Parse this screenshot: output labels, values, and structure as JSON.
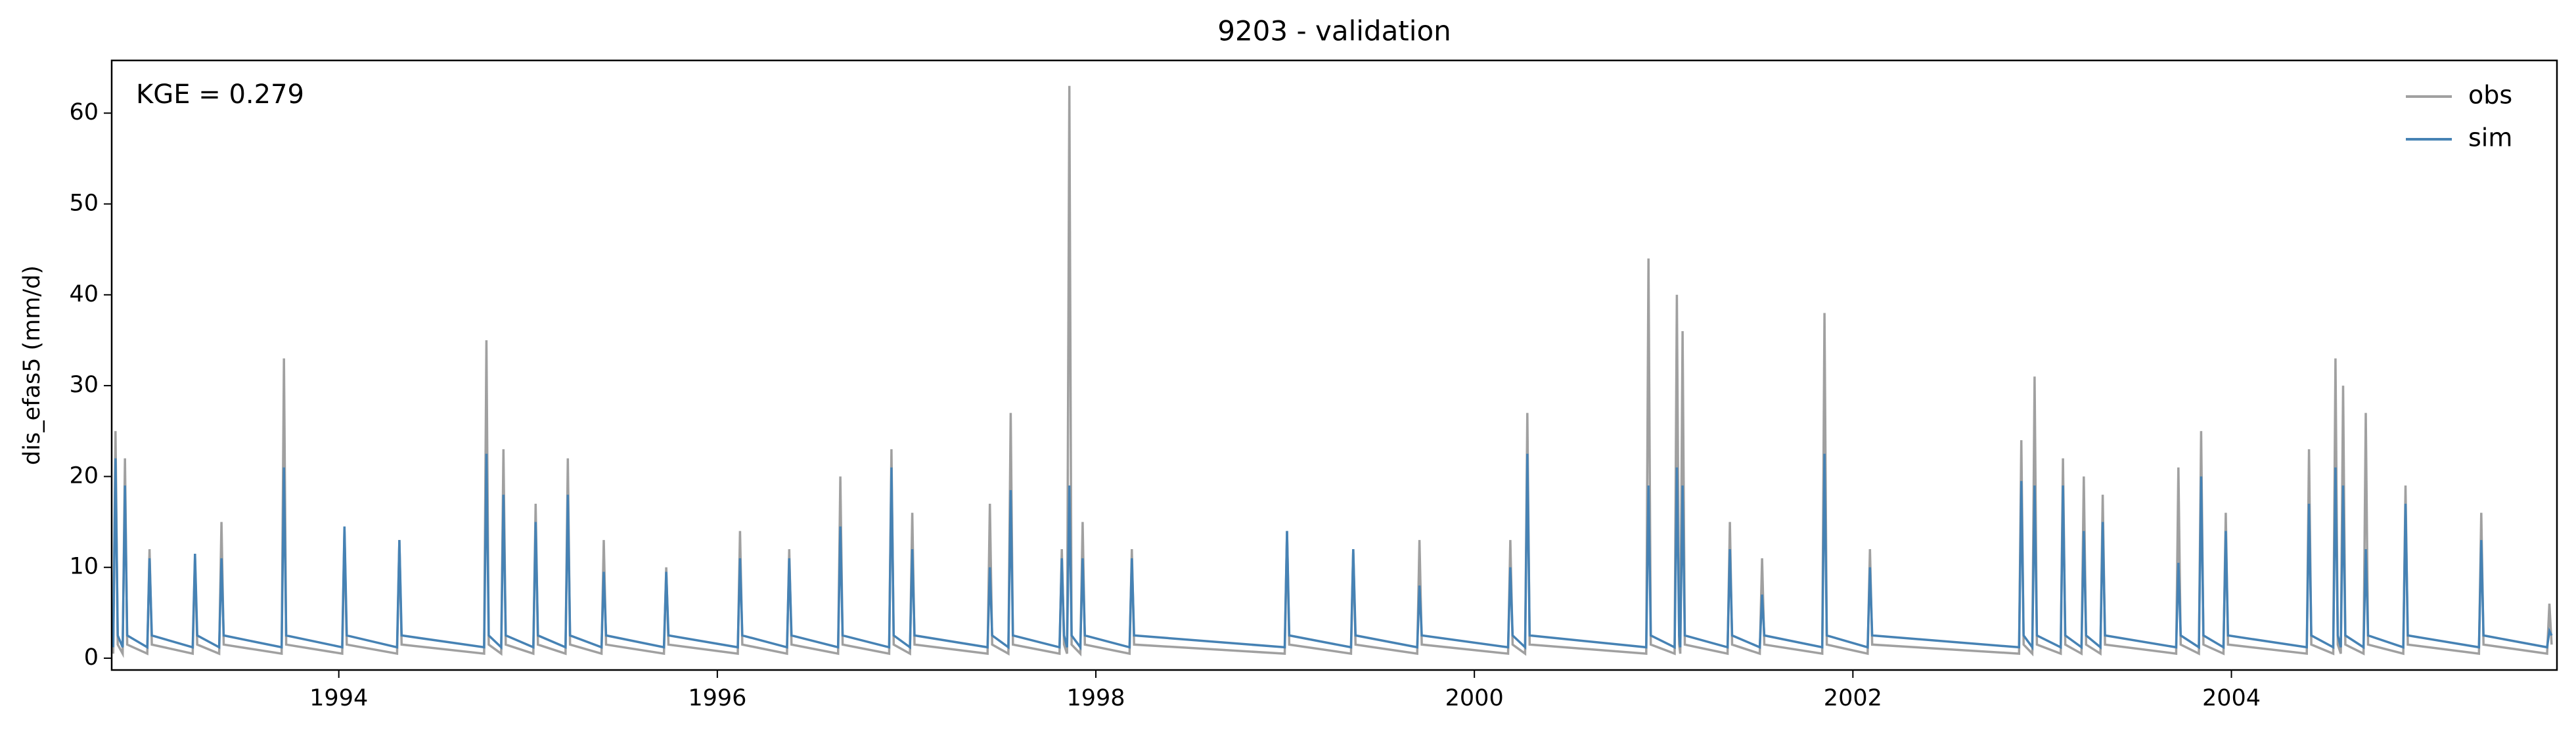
{
  "chart_data": {
    "type": "line",
    "title": "9203 - validation",
    "ylabel": "dis_efas5 (mm/d)",
    "annotation": "KGE = 0.279",
    "legend": "upper right",
    "xlim": [
      1992.8,
      2005.72
    ],
    "xticks": [
      1994,
      1996,
      1998,
      2000,
      2002,
      2004
    ],
    "ylim": [
      -1.3,
      65.8
    ],
    "yticks": [
      0,
      10,
      20,
      30,
      40,
      50,
      60
    ],
    "x": [
      1992.808,
      1992.82,
      1992.832,
      1992.858,
      1992.87,
      1992.882,
      1992.988,
      1993.0,
      1993.012,
      1993.228,
      1993.24,
      1993.252,
      1993.368,
      1993.38,
      1993.392,
      1993.698,
      1993.71,
      1993.722,
      1994.018,
      1994.03,
      1994.042,
      1994.308,
      1994.32,
      1994.332,
      1994.768,
      1994.78,
      1994.792,
      1994.858,
      1994.87,
      1994.882,
      1995.028,
      1995.04,
      1995.052,
      1995.198,
      1995.21,
      1995.222,
      1995.388,
      1995.4,
      1995.412,
      1995.718,
      1995.73,
      1995.742,
      1996.108,
      1996.12,
      1996.132,
      1996.368,
      1996.38,
      1996.392,
      1996.638,
      1996.65,
      1996.662,
      1996.908,
      1996.92,
      1996.932,
      1997.018,
      1997.03,
      1997.042,
      1997.428,
      1997.44,
      1997.452,
      1997.538,
      1997.55,
      1997.562,
      1997.808,
      1997.82,
      1997.832,
      1997.848,
      1997.86,
      1997.872,
      1997.918,
      1997.93,
      1997.942,
      1998.178,
      1998.19,
      1998.202,
      1998.998,
      1999.01,
      1999.022,
      1999.348,
      1999.36,
      1999.372,
      1999.698,
      1999.71,
      1999.722,
      2000.178,
      2000.19,
      2000.202,
      2000.268,
      2000.28,
      2000.292,
      2000.908,
      2000.92,
      2000.932,
      2001.058,
      2001.07,
      2001.082,
      2001.088,
      2001.1,
      2001.112,
      2001.338,
      2001.35,
      2001.362,
      2001.508,
      2001.52,
      2001.532,
      2001.838,
      2001.85,
      2001.862,
      2002.078,
      2002.09,
      2002.102,
      2002.878,
      2002.89,
      2002.902,
      2002.948,
      2002.96,
      2002.972,
      2003.098,
      2003.11,
      2003.122,
      2003.208,
      2003.22,
      2003.232,
      2003.308,
      2003.32,
      2003.332,
      2003.708,
      2003.72,
      2003.732,
      2003.828,
      2003.84,
      2003.852,
      2003.958,
      2003.97,
      2003.982,
      2004.398,
      2004.41,
      2004.422,
      2004.538,
      2004.55,
      2004.562,
      2004.578,
      2004.59,
      2004.602,
      2004.698,
      2004.71,
      2004.722,
      2004.908,
      2004.92,
      2004.932,
      2005.308,
      2005.32,
      2005.332,
      2005.668,
      2005.68,
      2005.692
    ],
    "series": [
      {
        "name": "obs",
        "color": "#a0a0a0",
        "values": [
          0.5,
          25,
          1.5,
          0.5,
          22,
          1.5,
          0.5,
          12,
          1.5,
          0.5,
          11,
          1.5,
          0.5,
          15,
          1.5,
          0.5,
          33,
          1.5,
          0.5,
          14,
          1.5,
          0.5,
          13,
          1.5,
          0.5,
          35,
          1.5,
          0.5,
          23,
          1.5,
          0.5,
          17,
          1.5,
          0.5,
          22,
          1.5,
          0.5,
          13,
          1.5,
          0.5,
          10,
          1.5,
          0.5,
          14,
          1.5,
          0.5,
          12,
          1.5,
          0.5,
          20,
          1.5,
          0.5,
          23,
          1.5,
          0.5,
          16,
          1.5,
          0.5,
          17,
          1.5,
          0.5,
          27,
          1.5,
          0.5,
          12,
          1.5,
          0.5,
          63,
          1.5,
          0.5,
          15,
          1.5,
          0.5,
          12,
          1.5,
          0.5,
          14,
          1.5,
          0.5,
          12,
          1.5,
          0.5,
          13,
          1.5,
          0.5,
          13,
          1.5,
          0.5,
          27,
          1.5,
          0.5,
          44,
          1.5,
          0.5,
          40,
          1.5,
          0.5,
          36,
          1.5,
          0.5,
          15,
          1.5,
          0.5,
          11,
          1.5,
          0.5,
          38,
          1.5,
          0.5,
          12,
          1.5,
          0.5,
          24,
          1.5,
          0.5,
          31,
          1.5,
          0.5,
          22,
          1.5,
          0.5,
          20,
          1.5,
          0.5,
          18,
          1.5,
          0.5,
          21,
          1.5,
          0.5,
          25,
          1.5,
          0.5,
          16,
          1.5,
          0.5,
          23,
          1.5,
          0.5,
          33,
          1.5,
          0.5,
          30,
          1.5,
          0.5,
          27,
          1.5,
          0.5,
          19,
          1.5,
          0.5,
          16,
          1.5,
          0.5,
          6,
          1.5
        ]
      },
      {
        "name": "sim",
        "color": "#4682b4",
        "values": [
          1.2,
          22,
          2.5,
          1.2,
          19,
          2.5,
          1.2,
          11,
          2.5,
          1.2,
          11.5,
          2.5,
          1.2,
          11,
          2.5,
          1.2,
          21,
          2.5,
          1.2,
          14.5,
          2.5,
          1.2,
          13,
          2.5,
          1.2,
          22.5,
          2.5,
          1.2,
          18,
          2.5,
          1.2,
          15,
          2.5,
          1.2,
          18,
          2.5,
          1.2,
          9.5,
          2.5,
          1.2,
          9.5,
          2.5,
          1.2,
          11,
          2.5,
          1.2,
          11,
          2.5,
          1.2,
          14.5,
          2.5,
          1.2,
          21,
          2.5,
          1.2,
          12,
          2.5,
          1.2,
          10,
          2.5,
          1.2,
          18.5,
          2.5,
          1.2,
          11,
          2.5,
          1.2,
          19,
          2.5,
          1.2,
          11,
          2.5,
          1.2,
          11,
          2.5,
          1.2,
          14,
          2.5,
          1.2,
          12,
          2.5,
          1.2,
          8,
          2.5,
          1.2,
          10,
          2.5,
          1.2,
          22.5,
          2.5,
          1.2,
          19,
          2.5,
          1.2,
          21,
          2.5,
          1.2,
          19,
          2.5,
          1.2,
          12,
          2.5,
          1.2,
          7,
          2.5,
          1.2,
          22.5,
          2.5,
          1.2,
          10,
          2.5,
          1.2,
          19.5,
          2.5,
          1.2,
          19,
          2.5,
          1.2,
          19,
          2.5,
          1.2,
          14,
          2.5,
          1.2,
          15,
          2.5,
          1.2,
          10.5,
          2.5,
          1.2,
          20,
          2.5,
          1.2,
          14,
          2.5,
          1.2,
          17,
          2.5,
          1.2,
          21,
          2.5,
          1.2,
          19,
          2.5,
          1.2,
          12,
          2.5,
          1.2,
          17,
          2.5,
          1.2,
          13,
          2.5,
          1.2,
          3,
          2.5
        ]
      }
    ]
  }
}
